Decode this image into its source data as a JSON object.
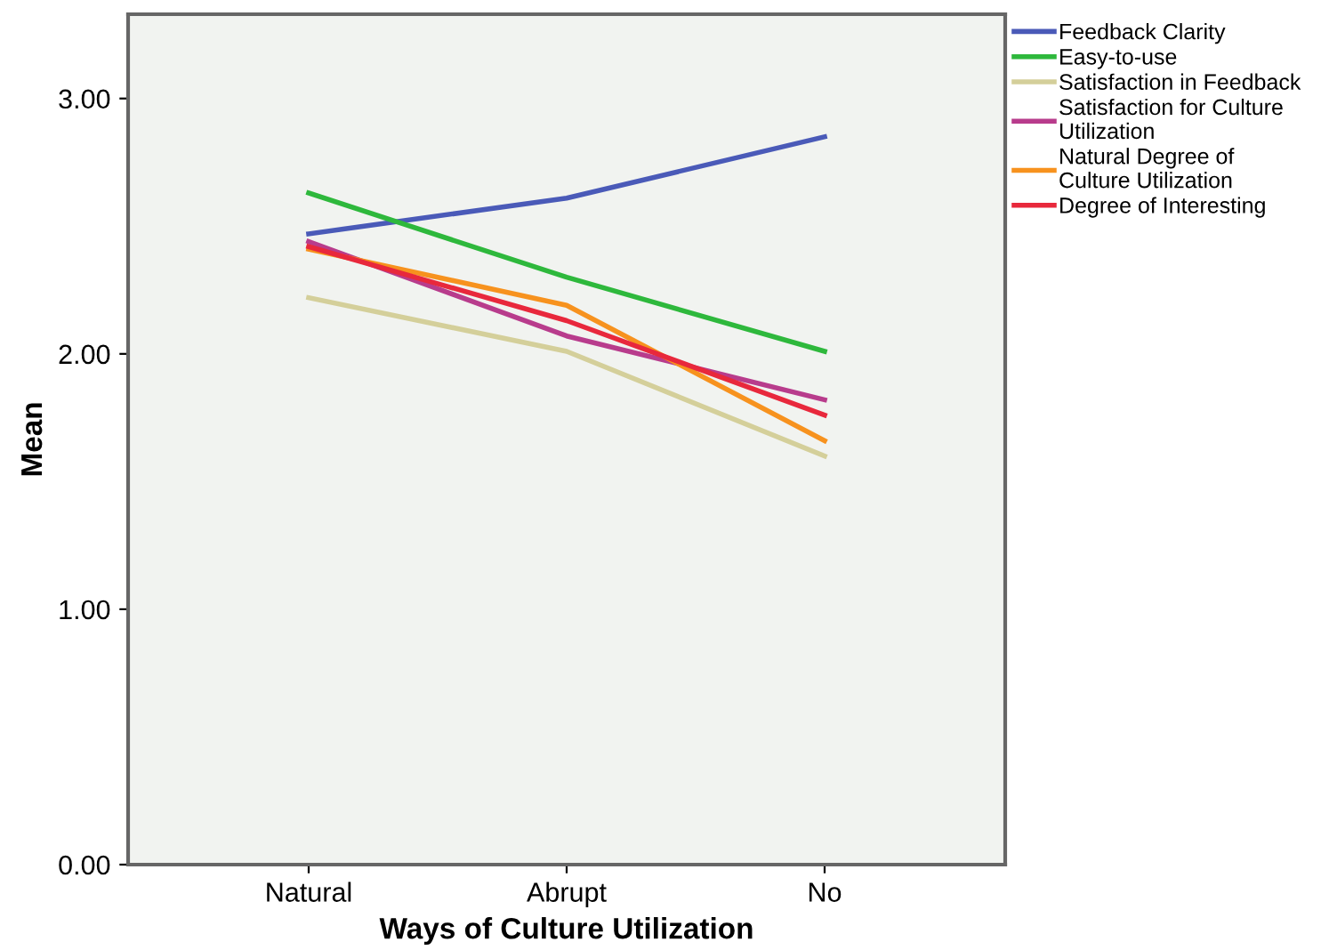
{
  "chart_data": {
    "type": "line",
    "xlabel": "Ways of Culture Utilization",
    "ylabel": "Mean",
    "categories": [
      "Natural",
      "Abrupt",
      "No"
    ],
    "series": [
      {
        "name": "Feedback Clarity",
        "color": "#4a5ab8",
        "values": [
          2.47,
          2.61,
          2.85
        ]
      },
      {
        "name": "Easy-to-use",
        "color": "#2eb83c",
        "values": [
          2.63,
          2.3,
          2.01
        ]
      },
      {
        "name": "Satisfaction in Feedback",
        "color": "#d4cf9a",
        "values": [
          2.22,
          2.01,
          1.6
        ]
      },
      {
        "name": "Satisfaction for Culture Utilization",
        "color": "#b83c8c",
        "values": [
          2.44,
          2.07,
          1.82
        ]
      },
      {
        "name": "Natural Degree of Culture Utilization",
        "color": "#f7921e",
        "values": [
          2.41,
          2.19,
          1.66
        ]
      },
      {
        "name": "Degree of Interesting",
        "color": "#e8283c",
        "values": [
          2.42,
          2.13,
          1.76
        ]
      }
    ],
    "ylim": [
      0,
      3.33
    ],
    "yticks": [
      {
        "value": 0,
        "label": "0.00"
      },
      {
        "value": 1,
        "label": "1.00"
      },
      {
        "value": 2,
        "label": "2.00"
      },
      {
        "value": 3,
        "label": "3.00"
      }
    ],
    "grid": false,
    "legend": "top right",
    "marker": "none",
    "line_style": "solid"
  }
}
